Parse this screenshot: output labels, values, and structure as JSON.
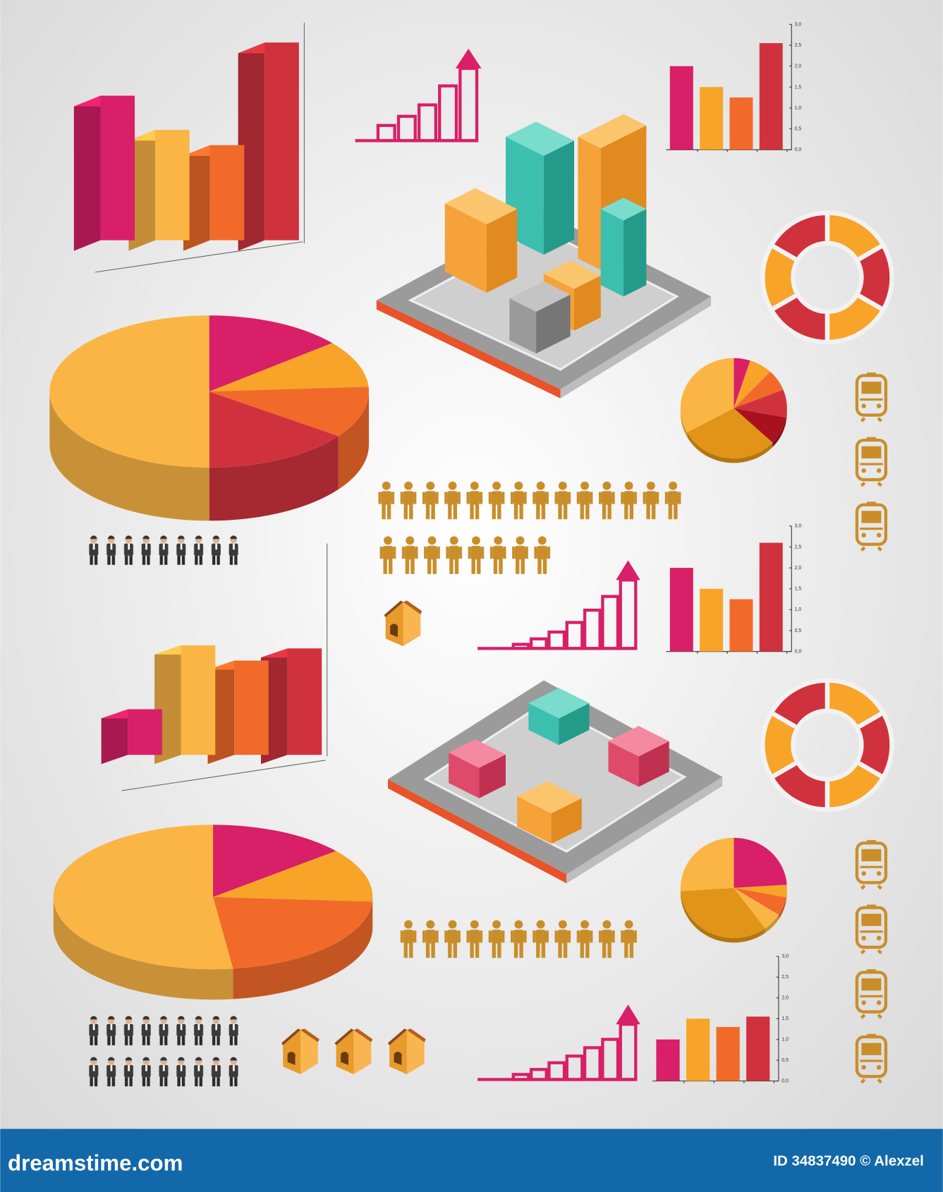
{
  "chart_data": [
    {
      "type": "bar3d",
      "values": [
        3.8,
        2.9,
        2.5,
        5.2
      ],
      "colors": [
        "#d81f68",
        "#fbb545",
        "#f26a2a",
        "#d0323d"
      ],
      "ylim": [
        0,
        6
      ]
    },
    {
      "type": "step",
      "values": [
        20,
        32,
        47,
        72,
        95
      ],
      "color": "#d81f68"
    },
    {
      "type": "bar",
      "values": [
        2.0,
        1.5,
        1.25,
        2.55
      ],
      "colors": [
        "#d81f68",
        "#f7a428",
        "#f26a2a",
        "#d0323d"
      ],
      "ylim": [
        0,
        3
      ],
      "yticks": [
        {
          "value": 0,
          "label": "0,0"
        },
        {
          "value": 0.5,
          "label": "0,5"
        },
        {
          "value": 1,
          "label": "1,0"
        },
        {
          "value": 1.5,
          "label": "1,5"
        },
        {
          "value": 2,
          "label": "2,0"
        },
        {
          "value": 2.5,
          "label": "2,5"
        },
        {
          "value": 3,
          "label": "3,0"
        }
      ]
    },
    {
      "type": "donut",
      "values": [
        1,
        1,
        1,
        1,
        1,
        1
      ],
      "colors": [
        "#f7a428",
        "#d0323d",
        "#f7a428",
        "#d0323d",
        "#f7a428",
        "#d0323d"
      ]
    },
    {
      "type": "pie",
      "values": [
        14,
        10,
        11,
        15,
        50
      ],
      "colors": [
        "#d81f68",
        "#f7a428",
        "#f26a2a",
        "#d0323d",
        "#fbb545"
      ]
    },
    {
      "type": "pie",
      "values": [
        5,
        7,
        7,
        9,
        9,
        30,
        33
      ],
      "colors": [
        "#d81f68",
        "#f7a428",
        "#f26a2a",
        "#d0323d",
        "#a8121f",
        "#e19417",
        "#fbb545"
      ]
    },
    {
      "type": "step",
      "values": [
        6,
        14,
        24,
        38,
        56,
        76,
        100
      ],
      "color": "#d81f68"
    },
    {
      "type": "bar",
      "values": [
        2.0,
        1.5,
        1.25,
        2.6
      ],
      "colors": [
        "#d81f68",
        "#f7a428",
        "#f26a2a",
        "#d0323d"
      ],
      "ylim": [
        0,
        3
      ],
      "yticks": [
        {
          "value": 0,
          "label": "0,0"
        },
        {
          "value": 0.5,
          "label": "0,5"
        },
        {
          "value": 1,
          "label": "1,0"
        },
        {
          "value": 1.5,
          "label": "1,5"
        },
        {
          "value": 2,
          "label": "2,0"
        },
        {
          "value": 2.5,
          "label": "2,5"
        },
        {
          "value": 3,
          "label": "3,0"
        }
      ]
    },
    {
      "type": "bar3d",
      "values": [
        1.5,
        3.6,
        3.1,
        3.5
      ],
      "colors": [
        "#d81f68",
        "#fbb545",
        "#f26a2a",
        "#d0323d"
      ],
      "ylim": [
        0,
        4.5
      ]
    },
    {
      "type": "donut",
      "values": [
        1,
        1,
        1,
        1,
        1,
        1
      ],
      "colors": [
        "#f7a428",
        "#d0323d",
        "#f7a428",
        "#d0323d",
        "#f7a428",
        "#d0323d"
      ]
    },
    {
      "type": "pie",
      "values": [
        14,
        12,
        22,
        52
      ],
      "colors": [
        "#d81f68",
        "#f7a428",
        "#f26a2a",
        "#fbb545"
      ]
    },
    {
      "type": "pie",
      "values": [
        24,
        4,
        6,
        6,
        34,
        26
      ],
      "colors": [
        "#d81f68",
        "#f7a428",
        "#f26a2a",
        "#fbb545",
        "#e19417",
        "#fbb545"
      ]
    },
    {
      "type": "step",
      "values": [
        6,
        12,
        20,
        28,
        38,
        48,
        66
      ],
      "color": "#d81f68"
    },
    {
      "type": "bar",
      "values": [
        1.0,
        1.5,
        1.3,
        1.55
      ],
      "colors": [
        "#d81f68",
        "#f7a428",
        "#f26a2a",
        "#d0323d"
      ],
      "ylim": [
        0,
        3
      ],
      "yticks": [
        {
          "value": 0,
          "label": "0,0"
        },
        {
          "value": 0.5,
          "label": "0,5"
        },
        {
          "value": 1,
          "label": "1,0"
        },
        {
          "value": 1.5,
          "label": "1,5"
        },
        {
          "value": 2,
          "label": "2,0"
        },
        {
          "value": 2.5,
          "label": "2,5"
        },
        {
          "value": 3,
          "label": "3,0"
        }
      ]
    }
  ],
  "footer": {
    "site": "dreamstime.com",
    "credit": "ID 34837490 © Alexzel"
  }
}
